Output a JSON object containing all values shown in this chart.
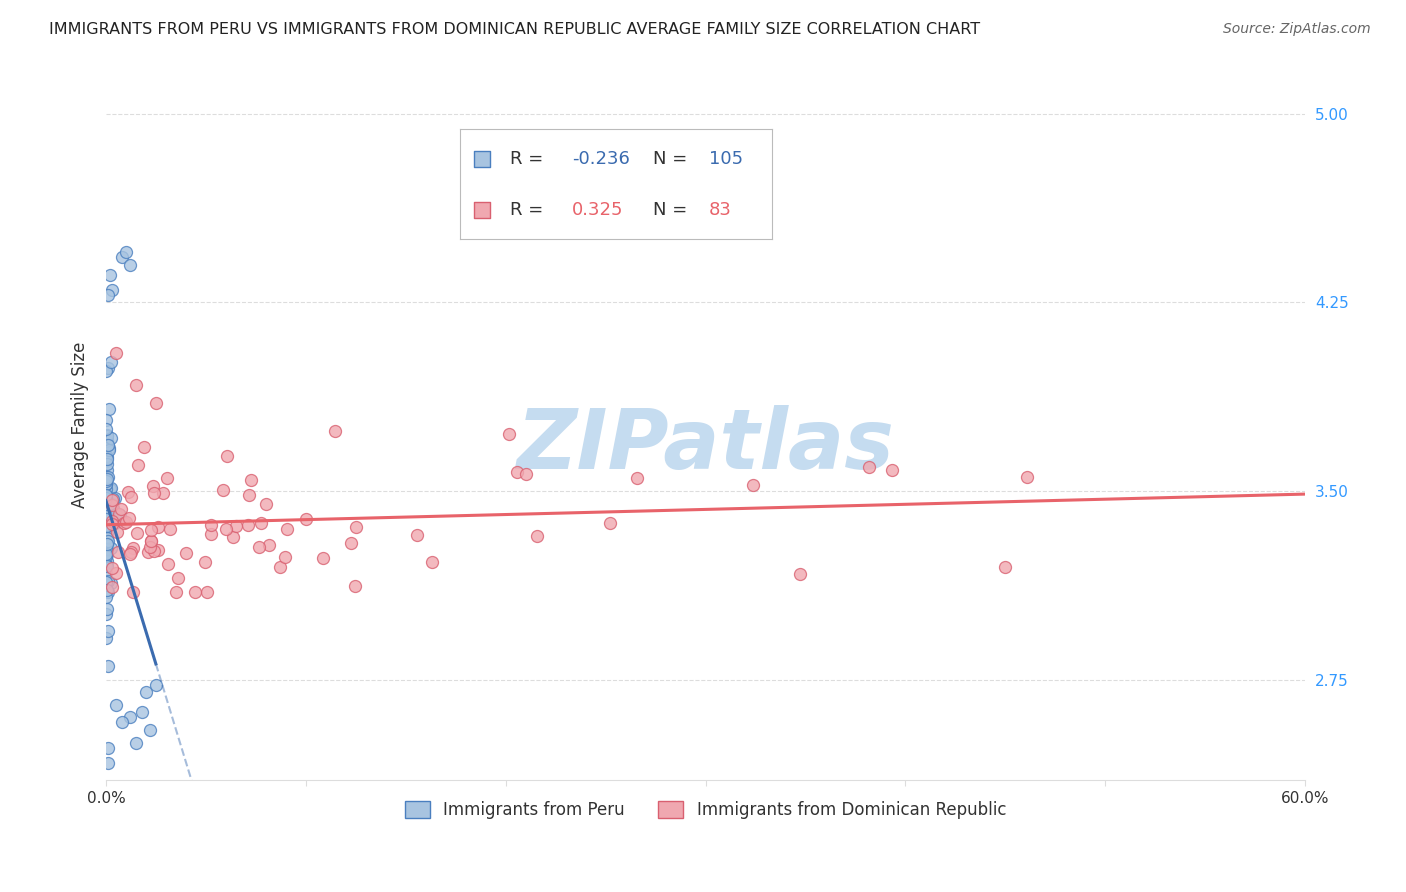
{
  "title": "IMMIGRANTS FROM PERU VS IMMIGRANTS FROM DOMINICAN REPUBLIC AVERAGE FAMILY SIZE CORRELATION CHART",
  "source": "Source: ZipAtlas.com",
  "ylabel": "Average Family Size",
  "legend_labels": [
    "Immigrants from Peru",
    "Immigrants from Dominican Republic"
  ],
  "legend_R": [
    "-0.236",
    "0.325"
  ],
  "legend_N": [
    "105",
    "83"
  ],
  "blue_line_color": "#3B6BAF",
  "pink_line_color": "#E8636A",
  "blue_scatter_face": "#A8C4E0",
  "blue_scatter_edge": "#4A7FBF",
  "pink_scatter_face": "#F0A8B0",
  "pink_scatter_edge": "#D96070",
  "watermark": "ZIPatlas",
  "watermark_color": "#C5DCF0",
  "xlim": [
    0.0,
    0.6
  ],
  "ylim": [
    2.35,
    5.18
  ],
  "yticks": [
    2.75,
    3.5,
    4.25,
    5.0
  ],
  "title_color": "#222222",
  "source_color": "#666666",
  "ylabel_color": "#333333",
  "ytick_color": "#3399FF",
  "xtick_color": "#333333",
  "grid_color": "#DDDDDD"
}
